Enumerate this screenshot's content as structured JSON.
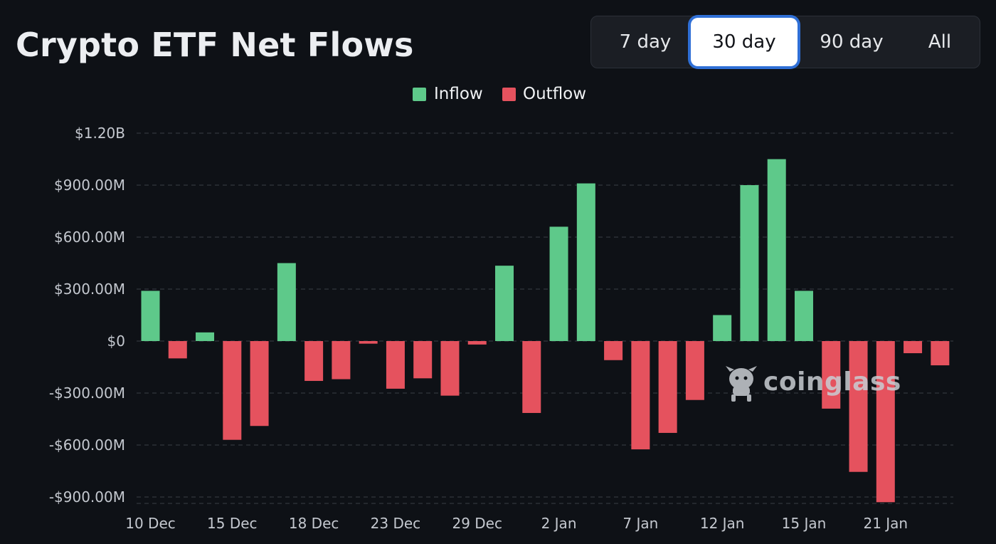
{
  "header": {
    "title": "Crypto ETF Net Flows"
  },
  "range_selector": {
    "options": [
      "7 day",
      "30 day",
      "90 day",
      "All"
    ],
    "selected": "30 day"
  },
  "legend": {
    "inflow_label": "Inflow",
    "outflow_label": "Outflow"
  },
  "watermark": {
    "text": "coinglass",
    "icon": "coinglass-mascot-icon"
  },
  "colors": {
    "background": "#0e1116",
    "inflow": "#5ec98a",
    "outflow": "#e5525e",
    "grid": "#3a3f47",
    "selected_outline": "#2f6fd6"
  },
  "chart_data": {
    "type": "bar",
    "title": "Crypto ETF Net Flows",
    "xlabel": "",
    "ylabel": "",
    "ylim": [
      -930,
      1200
    ],
    "yticks": [
      1200,
      900,
      600,
      300,
      0,
      -300,
      -600,
      -900
    ],
    "ytick_labels": [
      "$1.20B",
      "$900.00M",
      "$600.00M",
      "$300.00M",
      "$0",
      "-$300.00M",
      "-$600.00M",
      "-$900.00M"
    ],
    "unit": "USD millions",
    "xtick_labels": [
      {
        "index": 0,
        "label": "10 Dec"
      },
      {
        "index": 3,
        "label": "15 Dec"
      },
      {
        "index": 6,
        "label": "18 Dec"
      },
      {
        "index": 9,
        "label": "23 Dec"
      },
      {
        "index": 12,
        "label": "29 Dec"
      },
      {
        "index": 15,
        "label": "2 Jan"
      },
      {
        "index": 18,
        "label": "7 Jan"
      },
      {
        "index": 21,
        "label": "12 Jan"
      },
      {
        "index": 24,
        "label": "15 Jan"
      },
      {
        "index": 27,
        "label": "21 Jan"
      }
    ],
    "series": [
      {
        "name": "Net Flow",
        "values": [
          290,
          -100,
          50,
          -570,
          -490,
          450,
          -230,
          -220,
          -15,
          -275,
          -215,
          -315,
          -20,
          435,
          -415,
          660,
          910,
          -110,
          -625,
          -530,
          -340,
          150,
          900,
          1050,
          290,
          -390,
          -755,
          -930,
          -70,
          -140
        ]
      }
    ],
    "grid": true,
    "legend_position": "top-center"
  }
}
